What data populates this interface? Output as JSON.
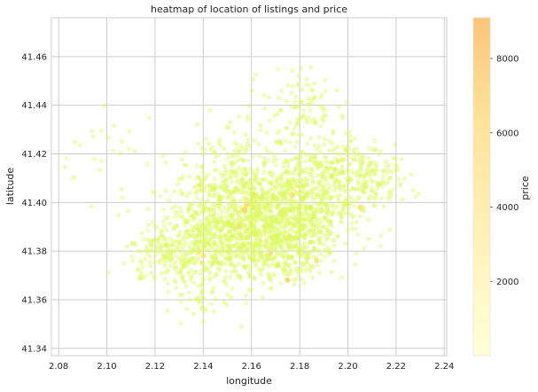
{
  "chart_data": {
    "type": "scatter",
    "title": "heatmap of location of listings and price",
    "xlabel": "longitude",
    "ylabel": "latitude",
    "xlim": [
      2.077,
      2.241
    ],
    "ylim": [
      41.337,
      41.476
    ],
    "x_ticks": [
      "2.08",
      "2.10",
      "2.12",
      "2.14",
      "2.16",
      "2.18",
      "2.20",
      "2.22",
      "2.24"
    ],
    "x_tick_values": [
      2.08,
      2.1,
      2.12,
      2.14,
      2.16,
      2.18,
      2.2,
      2.22,
      2.24
    ],
    "y_ticks": [
      "41.34",
      "41.36",
      "41.38",
      "41.40",
      "41.42",
      "41.44",
      "41.46"
    ],
    "y_tick_values": [
      41.34,
      41.36,
      41.38,
      41.4,
      41.42,
      41.44,
      41.46
    ],
    "grid": true,
    "colorbar": {
      "label": "price",
      "range": [
        0,
        9100
      ],
      "ticks": [
        "2000",
        "4000",
        "6000",
        "8000"
      ],
      "tick_values": [
        2000,
        4000,
        6000,
        8000
      ],
      "colors": [
        "#ffffcc",
        "#ffeda0",
        "#fed976",
        "#feb24c"
      ]
    },
    "points_generated": {
      "clusters": [
        {
          "cx": 2.165,
          "cy": 41.393,
          "sx": 0.016,
          "sy": 0.011,
          "n": 900
        },
        {
          "cx": 2.145,
          "cy": 41.385,
          "sx": 0.012,
          "sy": 0.009,
          "n": 380
        },
        {
          "cx": 2.185,
          "cy": 41.405,
          "sx": 0.012,
          "sy": 0.011,
          "n": 380
        },
        {
          "cx": 2.205,
          "cy": 41.412,
          "sx": 0.01,
          "sy": 0.007,
          "n": 200
        },
        {
          "cx": 2.128,
          "cy": 41.378,
          "sx": 0.01,
          "sy": 0.006,
          "n": 160
        },
        {
          "cx": 2.15,
          "cy": 41.412,
          "sx": 0.011,
          "sy": 0.01,
          "n": 180
        },
        {
          "cx": 2.18,
          "cy": 41.44,
          "sx": 0.008,
          "sy": 0.008,
          "n": 90
        },
        {
          "cx": 2.175,
          "cy": 41.38,
          "sx": 0.008,
          "sy": 0.006,
          "n": 160
        },
        {
          "cx": 2.14,
          "cy": 41.362,
          "sx": 0.007,
          "sy": 0.005,
          "n": 40
        },
        {
          "cx": 2.1,
          "cy": 41.42,
          "sx": 0.01,
          "sy": 0.008,
          "n": 25
        }
      ],
      "high_price_points": [
        {
          "x": 2.158,
          "y": 41.399,
          "price": 4200
        },
        {
          "x": 2.157,
          "y": 41.397,
          "price": 4800
        },
        {
          "x": 2.175,
          "y": 41.368,
          "price": 5200
        },
        {
          "x": 2.168,
          "y": 41.379,
          "price": 4000
        },
        {
          "x": 2.155,
          "y": 41.39,
          "price": 3600
        },
        {
          "x": 2.187,
          "y": 41.376,
          "price": 3200
        },
        {
          "x": 2.14,
          "y": 41.378,
          "price": 3400
        },
        {
          "x": 2.177,
          "y": 41.403,
          "price": 3000
        },
        {
          "x": 2.205,
          "y": 41.398,
          "price": 3200
        }
      ]
    }
  }
}
